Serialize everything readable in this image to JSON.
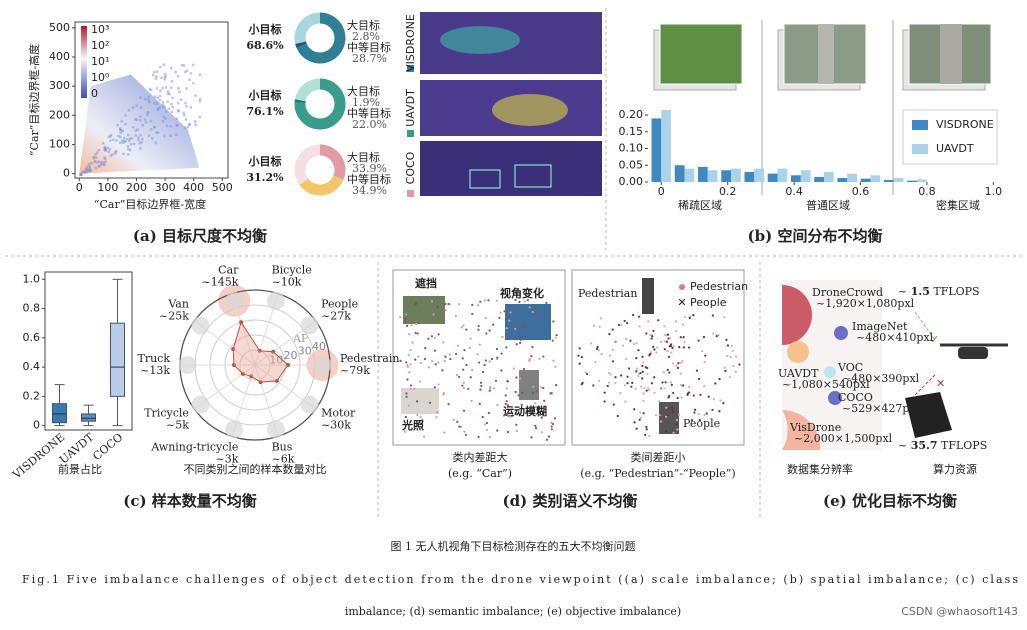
{
  "panel_a": {
    "caption": "(a) 目标尺度不均衡",
    "heatmap": {
      "x_label": "“Car”目标边界框-宽度",
      "y_label": "“Car”目标边界框-高度",
      "xlim": [
        -15,
        520
      ],
      "ylim": [
        -15,
        520
      ],
      "xticks": [
        0,
        100,
        200,
        300,
        400,
        500
      ],
      "yticks": [
        0,
        100,
        200,
        300,
        400,
        500
      ],
      "colorbar_labels": [
        "10³",
        "10²",
        "10¹",
        "10⁰",
        "0"
      ]
    },
    "donuts": [
      {
        "dataset": "VISDRONE",
        "categories": [
          "小目标",
          "大目标",
          "中等目标"
        ],
        "values": [
          68.6,
          2.8,
          28.7
        ],
        "value_labels": [
          "68.6%",
          "2.8%",
          "28.7%"
        ],
        "colors": [
          "#2f7f95",
          "#1d5f73",
          "#a9d6de"
        ]
      },
      {
        "dataset": "UAVDT",
        "categories": [
          "小目标",
          "大目标",
          "中等目标"
        ],
        "values": [
          76.1,
          1.9,
          22.0
        ],
        "value_labels": [
          "76.1%",
          "1.9%",
          "22.0%"
        ],
        "colors": [
          "#3a9c8c",
          "#24766a",
          "#b3e0d6"
        ]
      },
      {
        "dataset": "COCO",
        "categories": [
          "小目标",
          "大目标",
          "中等目标"
        ],
        "values": [
          31.2,
          33.9,
          34.9
        ],
        "value_labels": [
          "31.2%",
          "33.9%",
          "34.9%"
        ],
        "colors": [
          "#e29aa6",
          "#f1c766",
          "#f6dfe3"
        ]
      }
    ]
  },
  "panel_b": {
    "caption": "(b) 空间分布不均衡",
    "regions": [
      "稀疏区域",
      "普通区域",
      "密集区域"
    ],
    "chart": {
      "type": "bar",
      "xlim": [
        -0.04,
        1.02
      ],
      "ylim": [
        0,
        0.23
      ],
      "xticks": [
        0,
        0.2,
        0.4,
        0.6,
        0.8,
        {
          "value": 1,
          "label": "1.0"
        }
      ],
      "yticks": [
        {
          "value": 0,
          "label": "0.00"
        },
        {
          "value": 0.05,
          "label": "0.05"
        },
        {
          "value": 0.1,
          "label": "0.10"
        },
        {
          "value": 0.15,
          "label": "0.15"
        },
        {
          "value": 0.2,
          "label": "0.20"
        }
      ],
      "x": [
        0,
        0.07,
        0.14,
        0.21,
        0.28,
        0.35,
        0.42,
        0.49,
        0.56,
        0.63,
        0.7,
        0.77
      ],
      "series": [
        {
          "name": "VISDRONE",
          "color": "#3f88c0",
          "values": [
            0.19,
            0.05,
            0.045,
            0.035,
            0.03,
            0.025,
            0.02,
            0.015,
            0.012,
            0.01,
            0.006,
            0.004
          ]
        },
        {
          "name": "UAVDT",
          "color": "#a9d3ea",
          "values": [
            0.215,
            0.04,
            0.035,
            0.04,
            0.04,
            0.04,
            0.035,
            0.03,
            0.025,
            0.02,
            0.012,
            0.008
          ]
        }
      ]
    }
  },
  "panel_c": {
    "caption": "(c) 样本数量不均衡",
    "boxplot": {
      "x_label": "前景占比",
      "ylim": [
        -0.03,
        1.05
      ],
      "yticks": [
        0,
        0.2,
        0.4,
        0.6,
        0.8,
        {
          "value": 1,
          "label": "1.0"
        }
      ],
      "categories": [
        "VISDRONE",
        "UAVDT",
        "COCO"
      ],
      "colors": [
        "#3a78b0",
        "#5b8fc5",
        "#b9cde8"
      ],
      "min": [
        0,
        0,
        0
      ],
      "q1": [
        0.02,
        0.03,
        0.2
      ],
      "median": [
        0.08,
        0.05,
        0.4
      ],
      "q3": [
        0.15,
        0.08,
        0.7
      ],
      "max": [
        0.28,
        0.14,
        1.0
      ]
    },
    "radar": {
      "caption": "不同类别之间的样本数量对比",
      "axis_label": "AP",
      "rlim": [
        0,
        50
      ],
      "rticks": [
        10,
        20,
        30,
        40
      ],
      "categories": [
        "Car",
        "Bicycle",
        "People",
        "Pedestrain",
        "Motor",
        "Bus",
        "Awning-tricycle",
        "Tricycle",
        "Truck",
        "Van"
      ],
      "count_labels": [
        "~145k",
        "~10k",
        "~27k",
        "~79k",
        "~30k",
        "~6k",
        "~3k",
        "~5k",
        "~13k",
        "~25k"
      ],
      "values": [
        30,
        10,
        15,
        22,
        18,
        12,
        8,
        10,
        14,
        18
      ]
    }
  },
  "panel_d": {
    "caption": "(d) 类别语义不均衡",
    "left": {
      "labels": [
        "遮挡",
        "视角变化",
        "光照",
        "运动模糊"
      ],
      "caption": "类内差距大",
      "example": "(e.g. “Car”)"
    },
    "right": {
      "labels": [
        "Pedestrian",
        "People"
      ],
      "legend": [
        "Pedestrian",
        "People"
      ],
      "caption": "类间差距小",
      "example": "(e.g. “Pedestrian”-“People”)"
    }
  },
  "panel_e": {
    "caption": "(e) 优化目标不均衡",
    "datasets": [
      {
        "name": "DroneCrowd",
        "resolution": "~1,920×1,080pxl"
      },
      {
        "name": "ImageNet",
        "resolution": "~480×410pxl"
      },
      {
        "name": "UAVDT",
        "resolution": "~1,080×540pxl"
      },
      {
        "name": "VOC",
        "resolution": "~480×390pxl"
      },
      {
        "name": "COCO",
        "resolution": "~529×427pxl"
      },
      {
        "name": "VisDrone",
        "resolution": "~2,000×1,500pxl"
      }
    ],
    "compute": [
      {
        "prefix": "~ ",
        "value": "1.5",
        "unit": " TFLOPS"
      },
      {
        "prefix": "~ ",
        "value": "35.7",
        "unit": " TFLOPS"
      }
    ],
    "labels": [
      "数据集分辨率",
      "算力资源"
    ]
  },
  "figure": {
    "title": "图 1 无人机视角下目标检测存在的五大不均衡问题",
    "caption_line1": "Fig.1    Five imbalance challenges of object detection from the drone viewpoint ((a) scale imbalance; (b) spatial imbalance; (c) class",
    "caption_line2": "imbalance; (d) semantic imbalance; (e) objective imbalance)",
    "watermark": "CSDN @whaosoft143"
  }
}
